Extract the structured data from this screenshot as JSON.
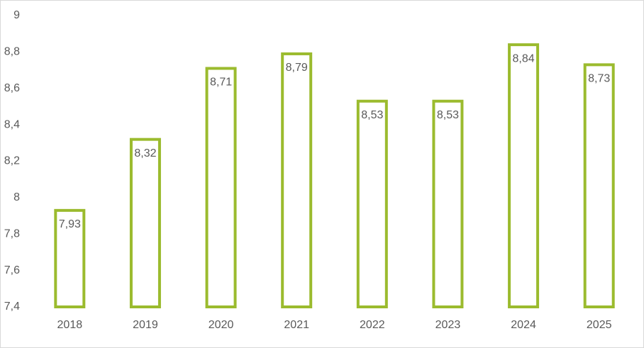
{
  "chart_data": {
    "type": "bar",
    "categories": [
      "2018",
      "2019",
      "2020",
      "2021",
      "2022",
      "2023",
      "2024",
      "2025"
    ],
    "values": [
      7.93,
      8.32,
      8.71,
      8.79,
      8.53,
      8.53,
      8.84,
      8.73
    ],
    "value_labels": [
      "7,93",
      "8,32",
      "8,71",
      "8,79",
      "8,53",
      "8,53",
      "8,84",
      "8,73"
    ],
    "color": "#9bbb2e",
    "ylim": [
      7.4,
      9
    ],
    "yticks": [
      {
        "value": 7.4,
        "label": "7,4"
      },
      {
        "value": 7.6,
        "label": "7,6"
      },
      {
        "value": 7.8,
        "label": "7,8"
      },
      8,
      {
        "value": 8.2,
        "label": "8,2"
      },
      {
        "value": 8.4,
        "label": "8,4"
      },
      {
        "value": 8.6,
        "label": "8,6"
      },
      {
        "value": 8.8,
        "label": "8,8"
      },
      9
    ],
    "grid": false
  }
}
